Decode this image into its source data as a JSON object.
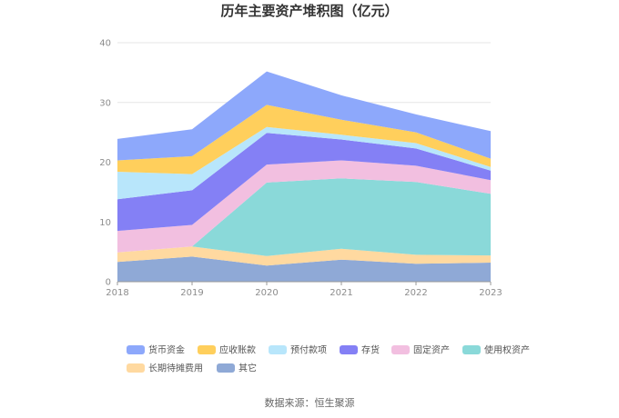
{
  "chart_data": {
    "type": "area",
    "stacked": true,
    "title": "历年主要资产堆积图（亿元）",
    "xlabel": "",
    "ylabel": "",
    "ylim": [
      0,
      40
    ],
    "yticks": [
      0,
      10,
      20,
      30,
      40
    ],
    "x": [
      "2018",
      "2019",
      "2020",
      "2021",
      "2022",
      "2023"
    ],
    "grid": true,
    "legend_position": "bottom",
    "series": [
      {
        "name": "其它",
        "color": "#8fa9d6",
        "values": [
          3.3,
          4.2,
          2.7,
          3.7,
          3.0,
          3.2
        ]
      },
      {
        "name": "长期待摊费用",
        "color": "#ffd9a0",
        "values": [
          1.6,
          1.7,
          1.6,
          1.8,
          1.5,
          1.2
        ]
      },
      {
        "name": "使用权资产",
        "color": "#8ad9d9",
        "values": [
          0.0,
          0.0,
          12.3,
          11.8,
          12.2,
          10.3
        ]
      },
      {
        "name": "固定资产",
        "color": "#f2bfe0",
        "values": [
          3.6,
          3.6,
          3.0,
          3.0,
          2.7,
          2.3
        ]
      },
      {
        "name": "存货",
        "color": "#8480f5",
        "values": [
          5.3,
          5.8,
          5.3,
          3.5,
          2.9,
          1.6
        ]
      },
      {
        "name": "预付款项",
        "color": "#b8e6fb",
        "values": [
          4.6,
          2.7,
          1.0,
          0.8,
          0.9,
          0.6
        ]
      },
      {
        "name": "应收账款",
        "color": "#ffcf5c",
        "values": [
          1.9,
          3.0,
          3.7,
          2.5,
          1.8,
          1.4
        ]
      },
      {
        "name": "货币资金",
        "color": "#8da8fb",
        "values": [
          3.6,
          4.5,
          5.6,
          4.1,
          3.0,
          4.6
        ]
      }
    ],
    "legend_order": [
      "货币资金",
      "应收账款",
      "预付款项",
      "存货",
      "固定资产",
      "使用权资产",
      "长期待摊费用",
      "其它"
    ]
  },
  "footer": {
    "source": "数据来源：恒生聚源"
  }
}
